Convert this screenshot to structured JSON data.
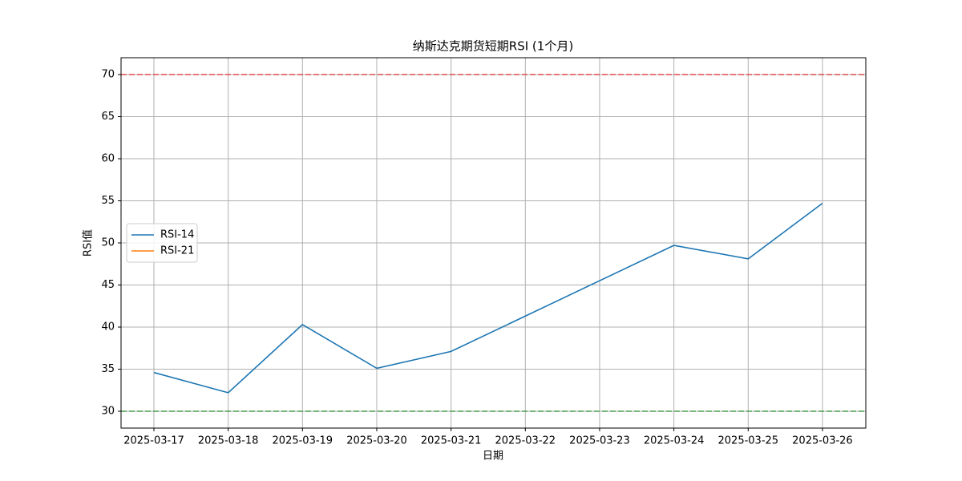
{
  "chart_data": {
    "type": "line",
    "title": "纳斯达克期货短期RSI (1个月)",
    "x_label": "日期",
    "y_label": "RSI值",
    "x": [
      "2025-03-17",
      "2025-03-18",
      "2025-03-19",
      "2025-03-20",
      "2025-03-21",
      "2025-03-24",
      "2025-03-25",
      "2025-03-26"
    ],
    "series": [
      {
        "name": "RSI-14",
        "color": "#1f77b4",
        "values": [
          34.6,
          32.2,
          40.3,
          35.1,
          37.1,
          49.7,
          48.1,
          54.7
        ]
      },
      {
        "name": "RSI-21",
        "color": "#ff7f0e",
        "values": [
          null,
          null,
          null,
          null,
          null,
          null,
          null,
          null
        ]
      }
    ],
    "xlim": [
      "2025-03-16T13:23",
      "2025-03-26T14:00"
    ],
    "xticks": [
      "2025-03-17",
      "2025-03-18",
      "2025-03-19",
      "2025-03-20",
      "2025-03-21",
      "2025-03-22",
      "2025-03-23",
      "2025-03-24",
      "2025-03-25",
      "2025-03-26"
    ],
    "ylim": [
      28,
      72
    ],
    "yticks": [
      30,
      35,
      40,
      45,
      50,
      55,
      60,
      65,
      70
    ],
    "reference_lines": [
      {
        "value": 70,
        "color": "#e24a4a"
      },
      {
        "value": 30,
        "color": "#4a9e4a"
      }
    ],
    "grid": true,
    "legend": "center left"
  }
}
